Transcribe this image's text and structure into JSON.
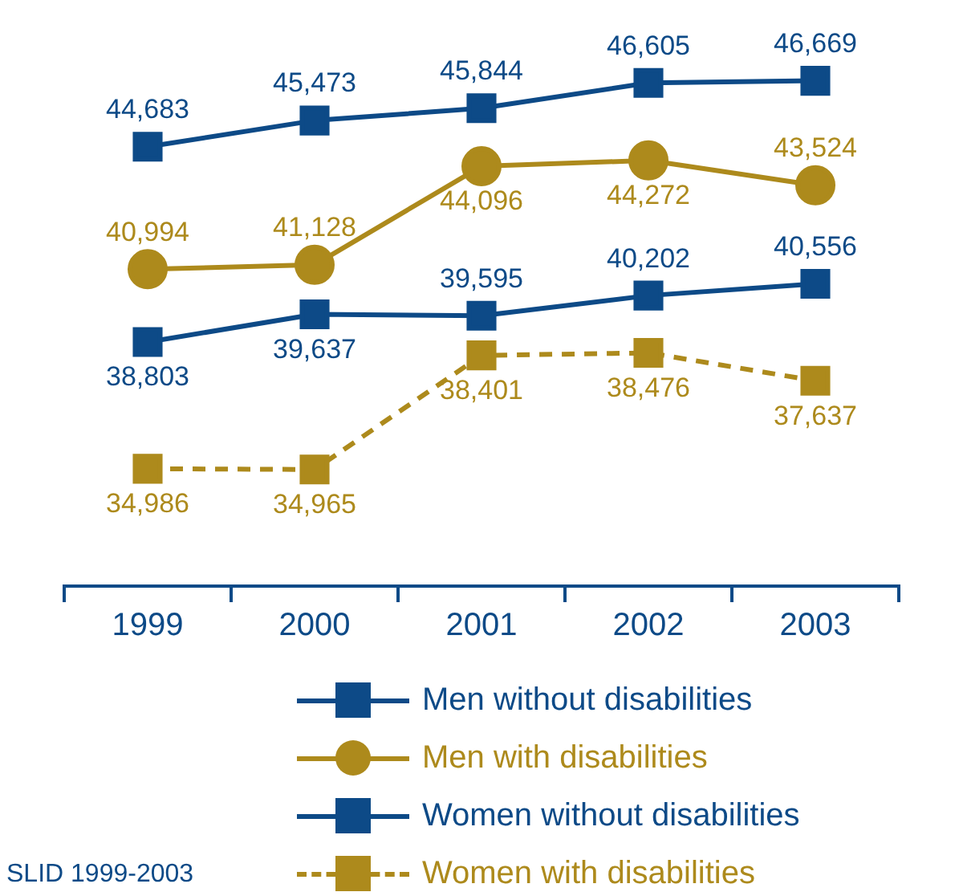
{
  "chart_data": {
    "type": "line",
    "categories": [
      "1999",
      "2000",
      "2001",
      "2002",
      "2003"
    ],
    "series": [
      {
        "name": "Men without disabilities",
        "color": "#0d4a87",
        "marker": "square",
        "line_style": "solid",
        "values": [
          44683,
          45473,
          45844,
          46605,
          46669
        ],
        "value_labels": [
          "44,683",
          "45,473",
          "45,844",
          "46,605",
          "46,669"
        ]
      },
      {
        "name": "Men with disabilities",
        "color": "#ad8a1c",
        "marker": "circle",
        "line_style": "solid",
        "values": [
          40994,
          41128,
          44096,
          44272,
          43524
        ],
        "value_labels": [
          "40,994",
          "41,128",
          "44,096",
          "44,272",
          "43,524"
        ]
      },
      {
        "name": "Women without disabilities",
        "color": "#0d4a87",
        "marker": "square",
        "line_style": "solid",
        "values": [
          38803,
          39637,
          39595,
          40202,
          40556
        ],
        "value_labels": [
          "38,803",
          "39,637",
          "39,595",
          "40,202",
          "40,556"
        ]
      },
      {
        "name": "Women with disabilities",
        "color": "#ad8a1c",
        "marker": "square",
        "line_style": "dashed",
        "values": [
          34986,
          34965,
          38401,
          38476,
          37637
        ],
        "value_labels": [
          "34,986",
          "34,965",
          "38,401",
          "38,476",
          "37,637"
        ]
      }
    ],
    "legend": "bottom",
    "grid": false,
    "tick_labels": "x",
    "annotations": [
      "SLID 1999-2003"
    ]
  }
}
